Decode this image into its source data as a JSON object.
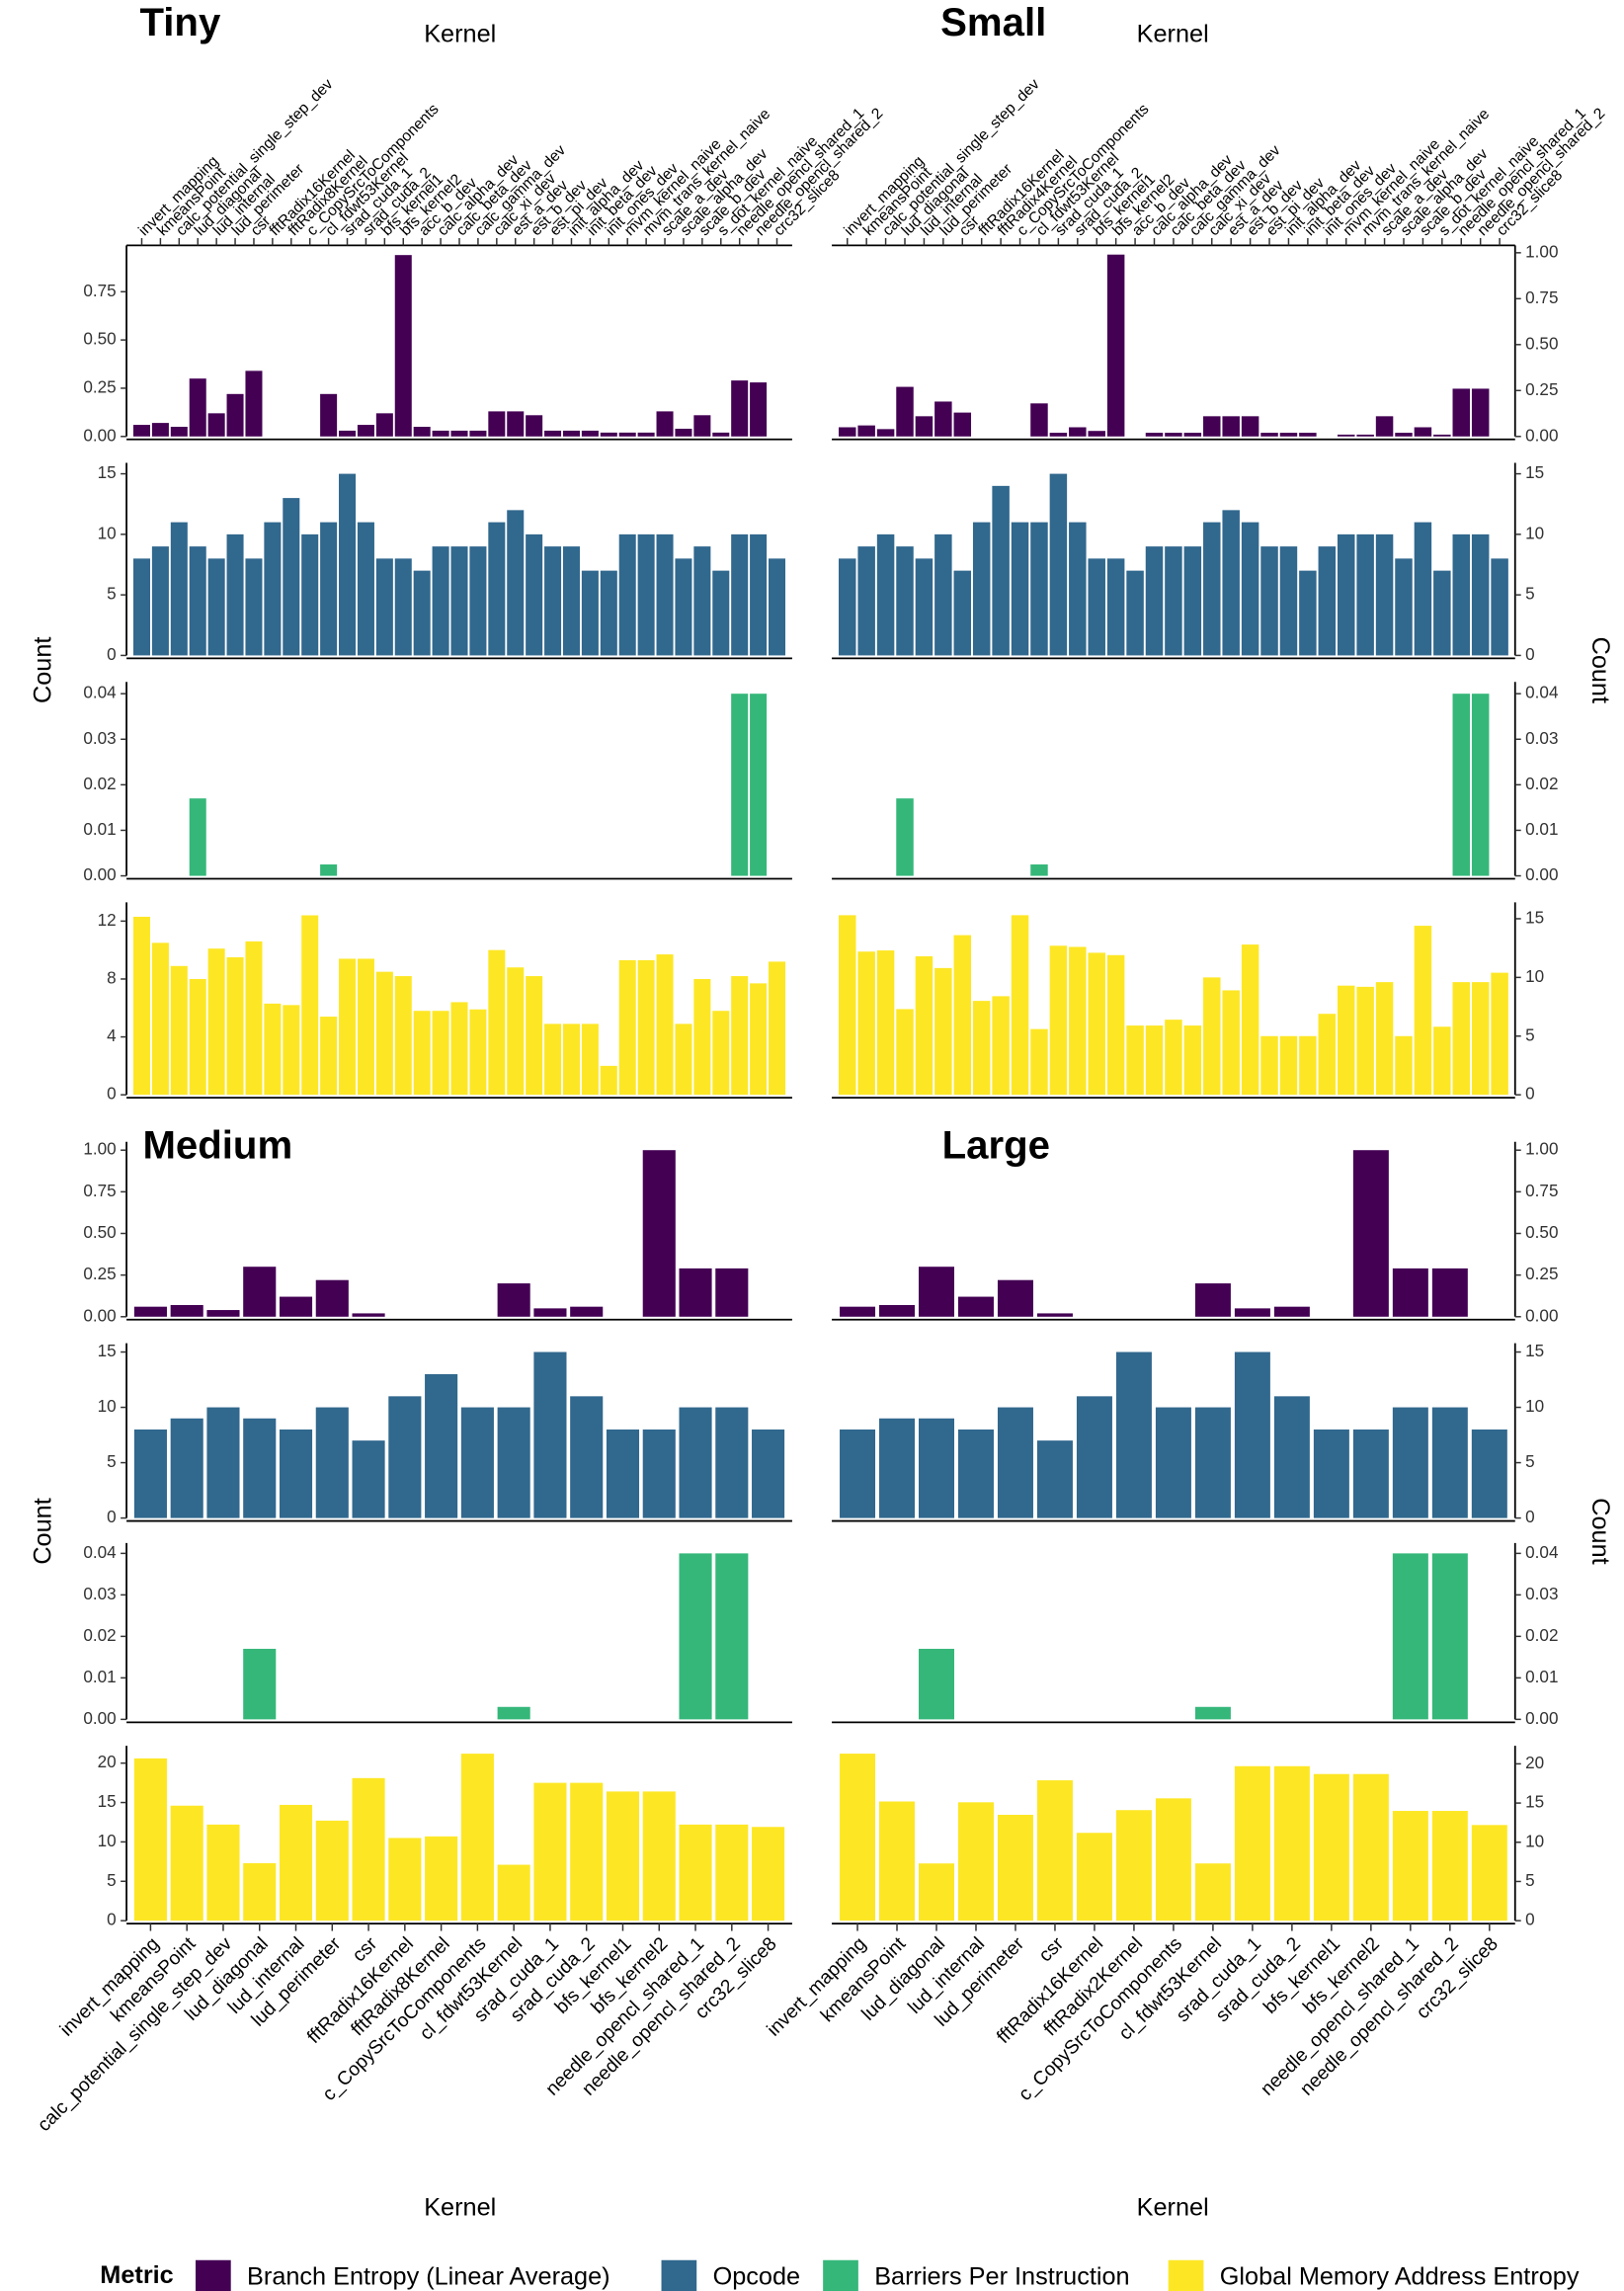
{
  "legend": {
    "title": "Metric",
    "items": [
      {
        "name": "Branch Entropy (Linear Average)",
        "color": "#440154"
      },
      {
        "name": "Opcode",
        "color": "#31688e"
      },
      {
        "name": "Barriers Per Instruction",
        "color": "#35b779"
      },
      {
        "name": "Global Memory Address Entropy",
        "color": "#fde725"
      }
    ]
  },
  "chart_data": [
    {
      "type": "bar",
      "title": "Tiny",
      "x_label": "Kernel",
      "y_label": "Count",
      "x_axis": "top",
      "y_axis": "left",
      "categories": [
        "invert_mapping",
        "kmeansPoint",
        "calc_potential_single_step_dev",
        "lud_diagonal",
        "lud_internal",
        "lud_perimeter",
        "csr",
        "fftRadix16Kernel",
        "fftRadix8Kernel",
        "c_CopySrcToComponents",
        "cl_fdwt53Kernel",
        "srad_cuda_1",
        "srad_cuda_2",
        "bfs_kernel1",
        "bfs_kernel2",
        "acc_b_dev",
        "calc_alpha_dev",
        "calc_beta_dev",
        "calc_gamma_dev",
        "calc_xi_dev",
        "est_a_dev",
        "est_b_dev",
        "est_pi_dev",
        "init_alpha_dev",
        "init_beta_dev",
        "init_ones_dev",
        "mvm_kernel_naive",
        "mvm_trans_kernel_naive",
        "scale_a_dev",
        "scale_alpha_dev",
        "scale_b_dev",
        "s_dot_kernel_naive",
        "needle_opencl_shared_1",
        "needle_opencl_shared_2",
        "crc32_slice8"
      ],
      "series": [
        {
          "values": [
            0.06,
            0.07,
            0.05,
            0.3,
            0.12,
            0.22,
            0.34,
            0,
            0,
            0,
            0.22,
            0.03,
            0.06,
            0.12,
            0.94,
            0.05,
            0.03,
            0.03,
            0.03,
            0.13,
            0.13,
            0.11,
            0.03,
            0.03,
            0.03,
            0.02,
            0.02,
            0.02,
            0.13,
            0.04,
            0.11,
            0.02,
            0.29,
            0.28,
            0
          ],
          "ylim": [
            0,
            0.99
          ],
          "yticks": [
            {
              "value": 0,
              "label": "0.00"
            },
            {
              "value": 0.25,
              "label": "0.25"
            },
            {
              "value": 0.5,
              "label": "0.50"
            },
            {
              "value": 0.75,
              "label": "0.75"
            }
          ]
        },
        {
          "values": [
            8,
            9,
            11,
            9,
            8,
            10,
            8,
            11,
            13,
            10,
            11,
            15,
            11,
            8,
            8,
            7,
            9,
            9,
            9,
            11,
            12,
            10,
            9,
            9,
            7,
            7,
            10,
            10,
            10,
            8,
            9,
            7,
            10,
            10,
            8
          ],
          "ylim": [
            0,
            15.9
          ],
          "yticks": [
            0,
            5,
            10,
            15
          ]
        },
        {
          "values": [
            0,
            0,
            0,
            0.017,
            0,
            0,
            0,
            0,
            0,
            0,
            0.0025,
            0,
            0,
            0,
            0,
            0,
            0,
            0,
            0,
            0,
            0,
            0,
            0,
            0,
            0,
            0,
            0,
            0,
            0,
            0,
            0,
            0,
            0.04,
            0.04,
            0
          ],
          "ylim": [
            0,
            0.0426
          ],
          "yticks": [
            {
              "value": 0,
              "label": "0.00"
            },
            {
              "value": 0.01,
              "label": "0.01"
            },
            {
              "value": 0.02,
              "label": "0.02"
            },
            {
              "value": 0.03,
              "label": "0.03"
            },
            {
              "value": 0.04,
              "label": "0.04"
            }
          ]
        },
        {
          "values": [
            12.3,
            10.5,
            8.9,
            8,
            10.1,
            9.5,
            10.6,
            6.3,
            6.2,
            12.4,
            5.4,
            9.4,
            9.4,
            8.5,
            8.2,
            5.8,
            5.8,
            6.4,
            5.9,
            10,
            8.8,
            8.2,
            4.9,
            4.9,
            4.9,
            2,
            9.3,
            9.3,
            9.7,
            4.9,
            8,
            5.8,
            8.2,
            7.7,
            9.2
          ],
          "ylim": [
            0,
            13.3
          ],
          "yticks": [
            0,
            4,
            8,
            12
          ]
        }
      ]
    },
    {
      "type": "bar",
      "title": "Small",
      "x_label": "Kernel",
      "y_label": "Count",
      "x_axis": "top",
      "y_axis": "right",
      "categories": [
        "invert_mapping",
        "kmeansPoint",
        "calc_potential_single_step_dev",
        "lud_diagonal",
        "lud_internal",
        "lud_perimeter",
        "csr",
        "fftRadix16Kernel",
        "fftRadix4Kernel",
        "c_CopySrcToComponents",
        "cl_fdwt53Kernel",
        "srad_cuda_1",
        "srad_cuda_2",
        "bfs_kernel1",
        "bfs_kernel2",
        "acc_b_dev",
        "calc_alpha_dev",
        "calc_beta_dev",
        "calc_gamma_dev",
        "calc_xi_dev",
        "est_a_dev",
        "est_b_dev",
        "est_pi_dev",
        "init_alpha_dev",
        "init_beta_dev",
        "init_ones_dev",
        "mvm_kernel_naive",
        "mvm_trans_kernel_naive",
        "scale_a_dev",
        "scale_alpha_dev",
        "scale_b_dev",
        "s_dot_kernel_naive",
        "needle_opencl_shared_1",
        "needle_opencl_shared_2",
        "crc32_slice8"
      ],
      "series": [
        {
          "values": [
            0.05,
            0.06,
            0.04,
            0.27,
            0.11,
            0.19,
            0.13,
            0,
            0,
            0,
            0.18,
            0.02,
            0.05,
            0.03,
            0.99,
            0,
            0.02,
            0.02,
            0.02,
            0.11,
            0.11,
            0.11,
            0.02,
            0.02,
            0.02,
            0,
            0.01,
            0.01,
            0.11,
            0.02,
            0.05,
            0.01,
            0.26,
            0.26,
            0
          ],
          "ylim": [
            0,
            1.04
          ],
          "yticks": [
            {
              "value": 0,
              "label": "0.00"
            },
            {
              "value": 0.25,
              "label": "0.25"
            },
            {
              "value": 0.5,
              "label": "0.50"
            },
            {
              "value": 0.75,
              "label": "0.75"
            },
            {
              "value": 1,
              "label": "1.00"
            }
          ]
        },
        {
          "values": [
            8,
            9,
            10,
            9,
            8,
            10,
            7,
            11,
            14,
            11,
            11,
            15,
            11,
            8,
            8,
            7,
            9,
            9,
            9,
            11,
            12,
            11,
            9,
            9,
            7,
            9,
            10,
            10,
            10,
            8,
            11,
            7,
            10,
            10,
            8
          ],
          "ylim": [
            0,
            15.9
          ],
          "yticks": [
            0,
            5,
            10,
            15
          ]
        },
        {
          "values": [
            0,
            0,
            0,
            0.017,
            0,
            0,
            0,
            0,
            0,
            0,
            0.0025,
            0,
            0,
            0,
            0,
            0,
            0,
            0,
            0,
            0,
            0,
            0,
            0,
            0,
            0,
            0,
            0,
            0,
            0,
            0,
            0,
            0,
            0.04,
            0.04,
            0
          ],
          "ylim": [
            0,
            0.0426
          ],
          "yticks": [
            {
              "value": 0,
              "label": "0.00"
            },
            {
              "value": 0.01,
              "label": "0.01"
            },
            {
              "value": 0.02,
              "label": "0.02"
            },
            {
              "value": 0.03,
              "label": "0.03"
            },
            {
              "value": 0.04,
              "label": "0.04"
            }
          ]
        },
        {
          "values": [
            15.3,
            12.2,
            12.3,
            7.3,
            11.8,
            10.8,
            13.6,
            8,
            8.4,
            15.3,
            5.6,
            12.7,
            12.6,
            12.1,
            11.9,
            5.9,
            5.9,
            6.4,
            5.9,
            10,
            8.9,
            12.8,
            5,
            5,
            5,
            6.9,
            9.3,
            9.2,
            9.6,
            5,
            14.4,
            5.8,
            9.6,
            9.6,
            10.4
          ],
          "ylim": [
            0,
            16.4
          ],
          "yticks": [
            0,
            5,
            10,
            15
          ]
        }
      ]
    },
    {
      "type": "bar",
      "title": "Medium",
      "x_label": "Kernel",
      "y_label": "Count",
      "x_axis": "bottom",
      "y_axis": "left",
      "categories": [
        "invert_mapping",
        "kmeansPoint",
        "calc_potential_single_step_dev",
        "lud_diagonal",
        "lud_internal",
        "lud_perimeter",
        "csr",
        "fftRadix16Kernel",
        "fftRadix8Kernel",
        "c_CopySrcToComponents",
        "cl_fdwt53Kernel",
        "srad_cuda_1",
        "srad_cuda_2",
        "bfs_kernel1",
        "bfs_kernel2",
        "needle_opencl_shared_1",
        "needle_opencl_shared_2",
        "crc32_slice8"
      ],
      "series": [
        {
          "values": [
            0.06,
            0.07,
            0.04,
            0.3,
            0.12,
            0.22,
            0.02,
            0,
            0,
            0,
            0.2,
            0.05,
            0.06,
            0,
            1.0,
            0.29,
            0.29,
            0
          ],
          "ylim": [
            0,
            1.05
          ],
          "yticks": [
            {
              "value": 0,
              "label": "0.00"
            },
            {
              "value": 0.25,
              "label": "0.25"
            },
            {
              "value": 0.5,
              "label": "0.50"
            },
            {
              "value": 0.75,
              "label": "0.75"
            },
            {
              "value": 1,
              "label": "1.00"
            }
          ]
        },
        {
          "values": [
            8,
            9,
            10,
            9,
            8,
            10,
            7,
            11,
            13,
            10,
            10,
            15,
            11,
            8,
            8,
            10,
            10,
            8
          ],
          "ylim": [
            0,
            15.8
          ],
          "yticks": [
            0,
            5,
            10,
            15
          ]
        },
        {
          "values": [
            0,
            0,
            0,
            0.017,
            0,
            0,
            0,
            0,
            0,
            0,
            0.003,
            0,
            0,
            0,
            0,
            0.04,
            0.04,
            0
          ],
          "ylim": [
            0,
            0.0425
          ],
          "yticks": [
            {
              "value": 0,
              "label": "0.00"
            },
            {
              "value": 0.01,
              "label": "0.01"
            },
            {
              "value": 0.02,
              "label": "0.02"
            },
            {
              "value": 0.03,
              "label": "0.03"
            },
            {
              "value": 0.04,
              "label": "0.04"
            }
          ]
        },
        {
          "values": [
            20.6,
            14.6,
            12.2,
            7.3,
            14.7,
            12.7,
            18.1,
            10.5,
            10.7,
            21.2,
            7.1,
            17.5,
            17.5,
            16.4,
            16.4,
            12.2,
            12.2,
            11.9
          ],
          "ylim": [
            0,
            22.2
          ],
          "yticks": [
            0,
            5,
            10,
            15,
            20
          ]
        }
      ]
    },
    {
      "type": "bar",
      "title": "Large",
      "x_label": "Kernel",
      "y_label": "Count",
      "x_axis": "bottom",
      "y_axis": "right",
      "categories": [
        "invert_mapping",
        "kmeansPoint",
        "lud_diagonal",
        "lud_internal",
        "lud_perimeter",
        "csr",
        "fftRadix16Kernel",
        "fftRadix2Kernel",
        "c_CopySrcToComponents",
        "cl_fdwt53Kernel",
        "srad_cuda_1",
        "srad_cuda_2",
        "bfs_kernel1",
        "bfs_kernel2",
        "needle_opencl_shared_1",
        "needle_opencl_shared_2",
        "crc32_slice8"
      ],
      "series": [
        {
          "values": [
            0.06,
            0.07,
            0.3,
            0.12,
            0.22,
            0.02,
            0,
            0,
            0,
            0.2,
            0.05,
            0.06,
            0,
            1.0,
            0.29,
            0.29,
            0
          ],
          "ylim": [
            0,
            1.05
          ],
          "yticks": [
            {
              "value": 0,
              "label": "0.00"
            },
            {
              "value": 0.25,
              "label": "0.25"
            },
            {
              "value": 0.5,
              "label": "0.50"
            },
            {
              "value": 0.75,
              "label": "0.75"
            },
            {
              "value": 1,
              "label": "1.00"
            }
          ]
        },
        {
          "values": [
            8,
            9,
            9,
            8,
            10,
            7,
            11,
            15,
            10,
            10,
            15,
            11,
            8,
            8,
            10,
            10,
            8
          ],
          "ylim": [
            0,
            15.8
          ],
          "yticks": [
            0,
            5,
            10,
            15
          ]
        },
        {
          "values": [
            0,
            0,
            0.017,
            0,
            0,
            0,
            0,
            0,
            0,
            0.003,
            0,
            0,
            0,
            0,
            0.04,
            0.04,
            0
          ],
          "ylim": [
            0,
            0.0425
          ],
          "yticks": [
            {
              "value": 0,
              "label": "0.00"
            },
            {
              "value": 0.01,
              "label": "0.01"
            },
            {
              "value": 0.02,
              "label": "0.02"
            },
            {
              "value": 0.03,
              "label": "0.03"
            },
            {
              "value": 0.04,
              "label": "0.04"
            }
          ]
        },
        {
          "values": [
            21.3,
            15.2,
            7.3,
            15.1,
            13.5,
            17.9,
            11.2,
            14.1,
            15.6,
            7.3,
            19.7,
            19.7,
            18.7,
            18.7,
            14,
            14,
            12.2
          ],
          "ylim": [
            0,
            22.3
          ],
          "yticks": [
            0,
            5,
            10,
            15,
            20
          ]
        }
      ]
    }
  ]
}
